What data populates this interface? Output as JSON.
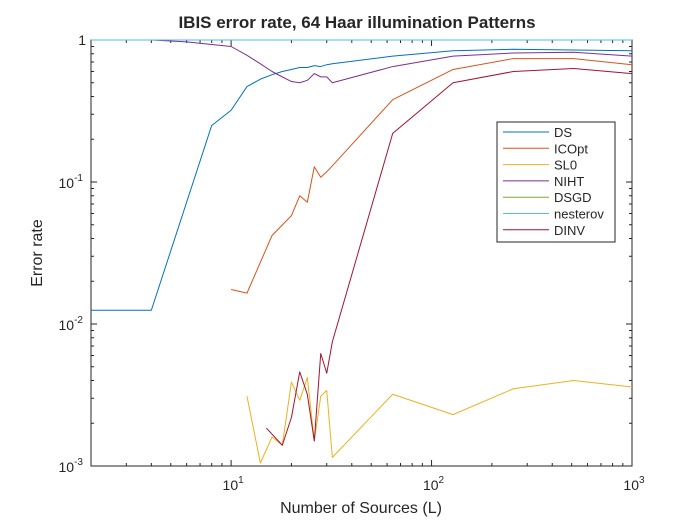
{
  "chart_data": {
    "type": "line",
    "title": "IBIS error rate, 64 Haar illumination Patterns",
    "xlabel": "Number of Sources (L)",
    "ylabel": "Error rate",
    "xscale": "log",
    "yscale": "log",
    "xlim": [
      2,
      1000
    ],
    "ylim": [
      0.001,
      1
    ],
    "grid": false,
    "legend_position": "top-right",
    "x_ticks": [
      {
        "value": 10,
        "base": "10",
        "exp": "1"
      },
      {
        "value": 100,
        "base": "10",
        "exp": "2"
      },
      {
        "value": 1000,
        "base": "10",
        "exp": "3"
      }
    ],
    "y_ticks": [
      {
        "value": 0.001,
        "base": "10",
        "exp": "-3"
      },
      {
        "value": 0.01,
        "base": "10",
        "exp": "-2"
      },
      {
        "value": 0.1,
        "base": "10",
        "exp": "-1"
      },
      {
        "value": 1,
        "base": "10",
        "exp": "0"
      }
    ],
    "y_top_tick_label": "1",
    "series": [
      {
        "name": "DS",
        "color": "#0072bd",
        "x": [
          2,
          4,
          8,
          10,
          12,
          14,
          16,
          18,
          20,
          22,
          24,
          26,
          28,
          30,
          32,
          64,
          128,
          256,
          512,
          1000
        ],
        "y": [
          0.0125,
          0.0125,
          0.25,
          0.32,
          0.47,
          0.53,
          0.57,
          0.6,
          0.62,
          0.64,
          0.64,
          0.66,
          0.65,
          0.67,
          0.68,
          0.77,
          0.84,
          0.86,
          0.85,
          0.84
        ]
      },
      {
        "name": "ICOpt",
        "color": "#d95319",
        "x": [
          10,
          12,
          16,
          20,
          22,
          24,
          26,
          28,
          30,
          32,
          64,
          128,
          256,
          512,
          1000
        ],
        "y": [
          0.0175,
          0.0165,
          0.042,
          0.058,
          0.08,
          0.072,
          0.128,
          0.108,
          0.118,
          0.13,
          0.38,
          0.62,
          0.74,
          0.74,
          0.67
        ]
      },
      {
        "name": "SL0",
        "color": "#edb120",
        "x": [
          12,
          14,
          16,
          18,
          20,
          22,
          24,
          26,
          28,
          30,
          32,
          64,
          128,
          256,
          512,
          1000
        ],
        "y": [
          0.0031,
          0.00105,
          0.0016,
          0.0014,
          0.0039,
          0.0029,
          0.0042,
          0.0015,
          0.0031,
          0.0034,
          0.00115,
          0.0032,
          0.0023,
          0.0035,
          0.004,
          0.0036
        ]
      },
      {
        "name": "NIHT",
        "color": "#7e2f8e",
        "x": [
          2,
          4,
          6,
          8,
          10,
          12,
          14,
          16,
          18,
          20,
          22,
          24,
          26,
          28,
          30,
          32,
          64,
          128,
          256,
          512,
          1000
        ],
        "y": [
          1.0,
          1.0,
          0.97,
          0.93,
          0.9,
          0.78,
          0.68,
          0.6,
          0.55,
          0.51,
          0.5,
          0.52,
          0.58,
          0.55,
          0.55,
          0.5,
          0.65,
          0.77,
          0.81,
          0.82,
          0.77
        ]
      },
      {
        "name": "DSGD",
        "color": "#77ac30",
        "x": [
          2,
          4,
          8,
          16,
          32,
          64,
          128,
          256,
          512,
          1000
        ],
        "y": [
          1.0,
          1.0,
          1.0,
          1.0,
          1.0,
          1.0,
          1.0,
          1.0,
          1.0,
          1.0
        ]
      },
      {
        "name": "nesterov",
        "color": "#4dbeee",
        "x": [
          2,
          4,
          8,
          16,
          32,
          64,
          128,
          256,
          512,
          1000
        ],
        "y": [
          1.0,
          1.0,
          1.0,
          1.0,
          1.0,
          1.0,
          1.0,
          1.0,
          1.0,
          1.0
        ]
      },
      {
        "name": "DINV",
        "color": "#a2142f",
        "x": [
          15,
          18,
          20,
          22,
          24,
          26,
          28,
          30,
          32,
          64,
          128,
          256,
          512,
          1000
        ],
        "y": [
          0.00185,
          0.0014,
          0.0022,
          0.0046,
          0.0032,
          0.0015,
          0.0062,
          0.0045,
          0.0075,
          0.22,
          0.5,
          0.6,
          0.63,
          0.58
        ]
      }
    ]
  }
}
